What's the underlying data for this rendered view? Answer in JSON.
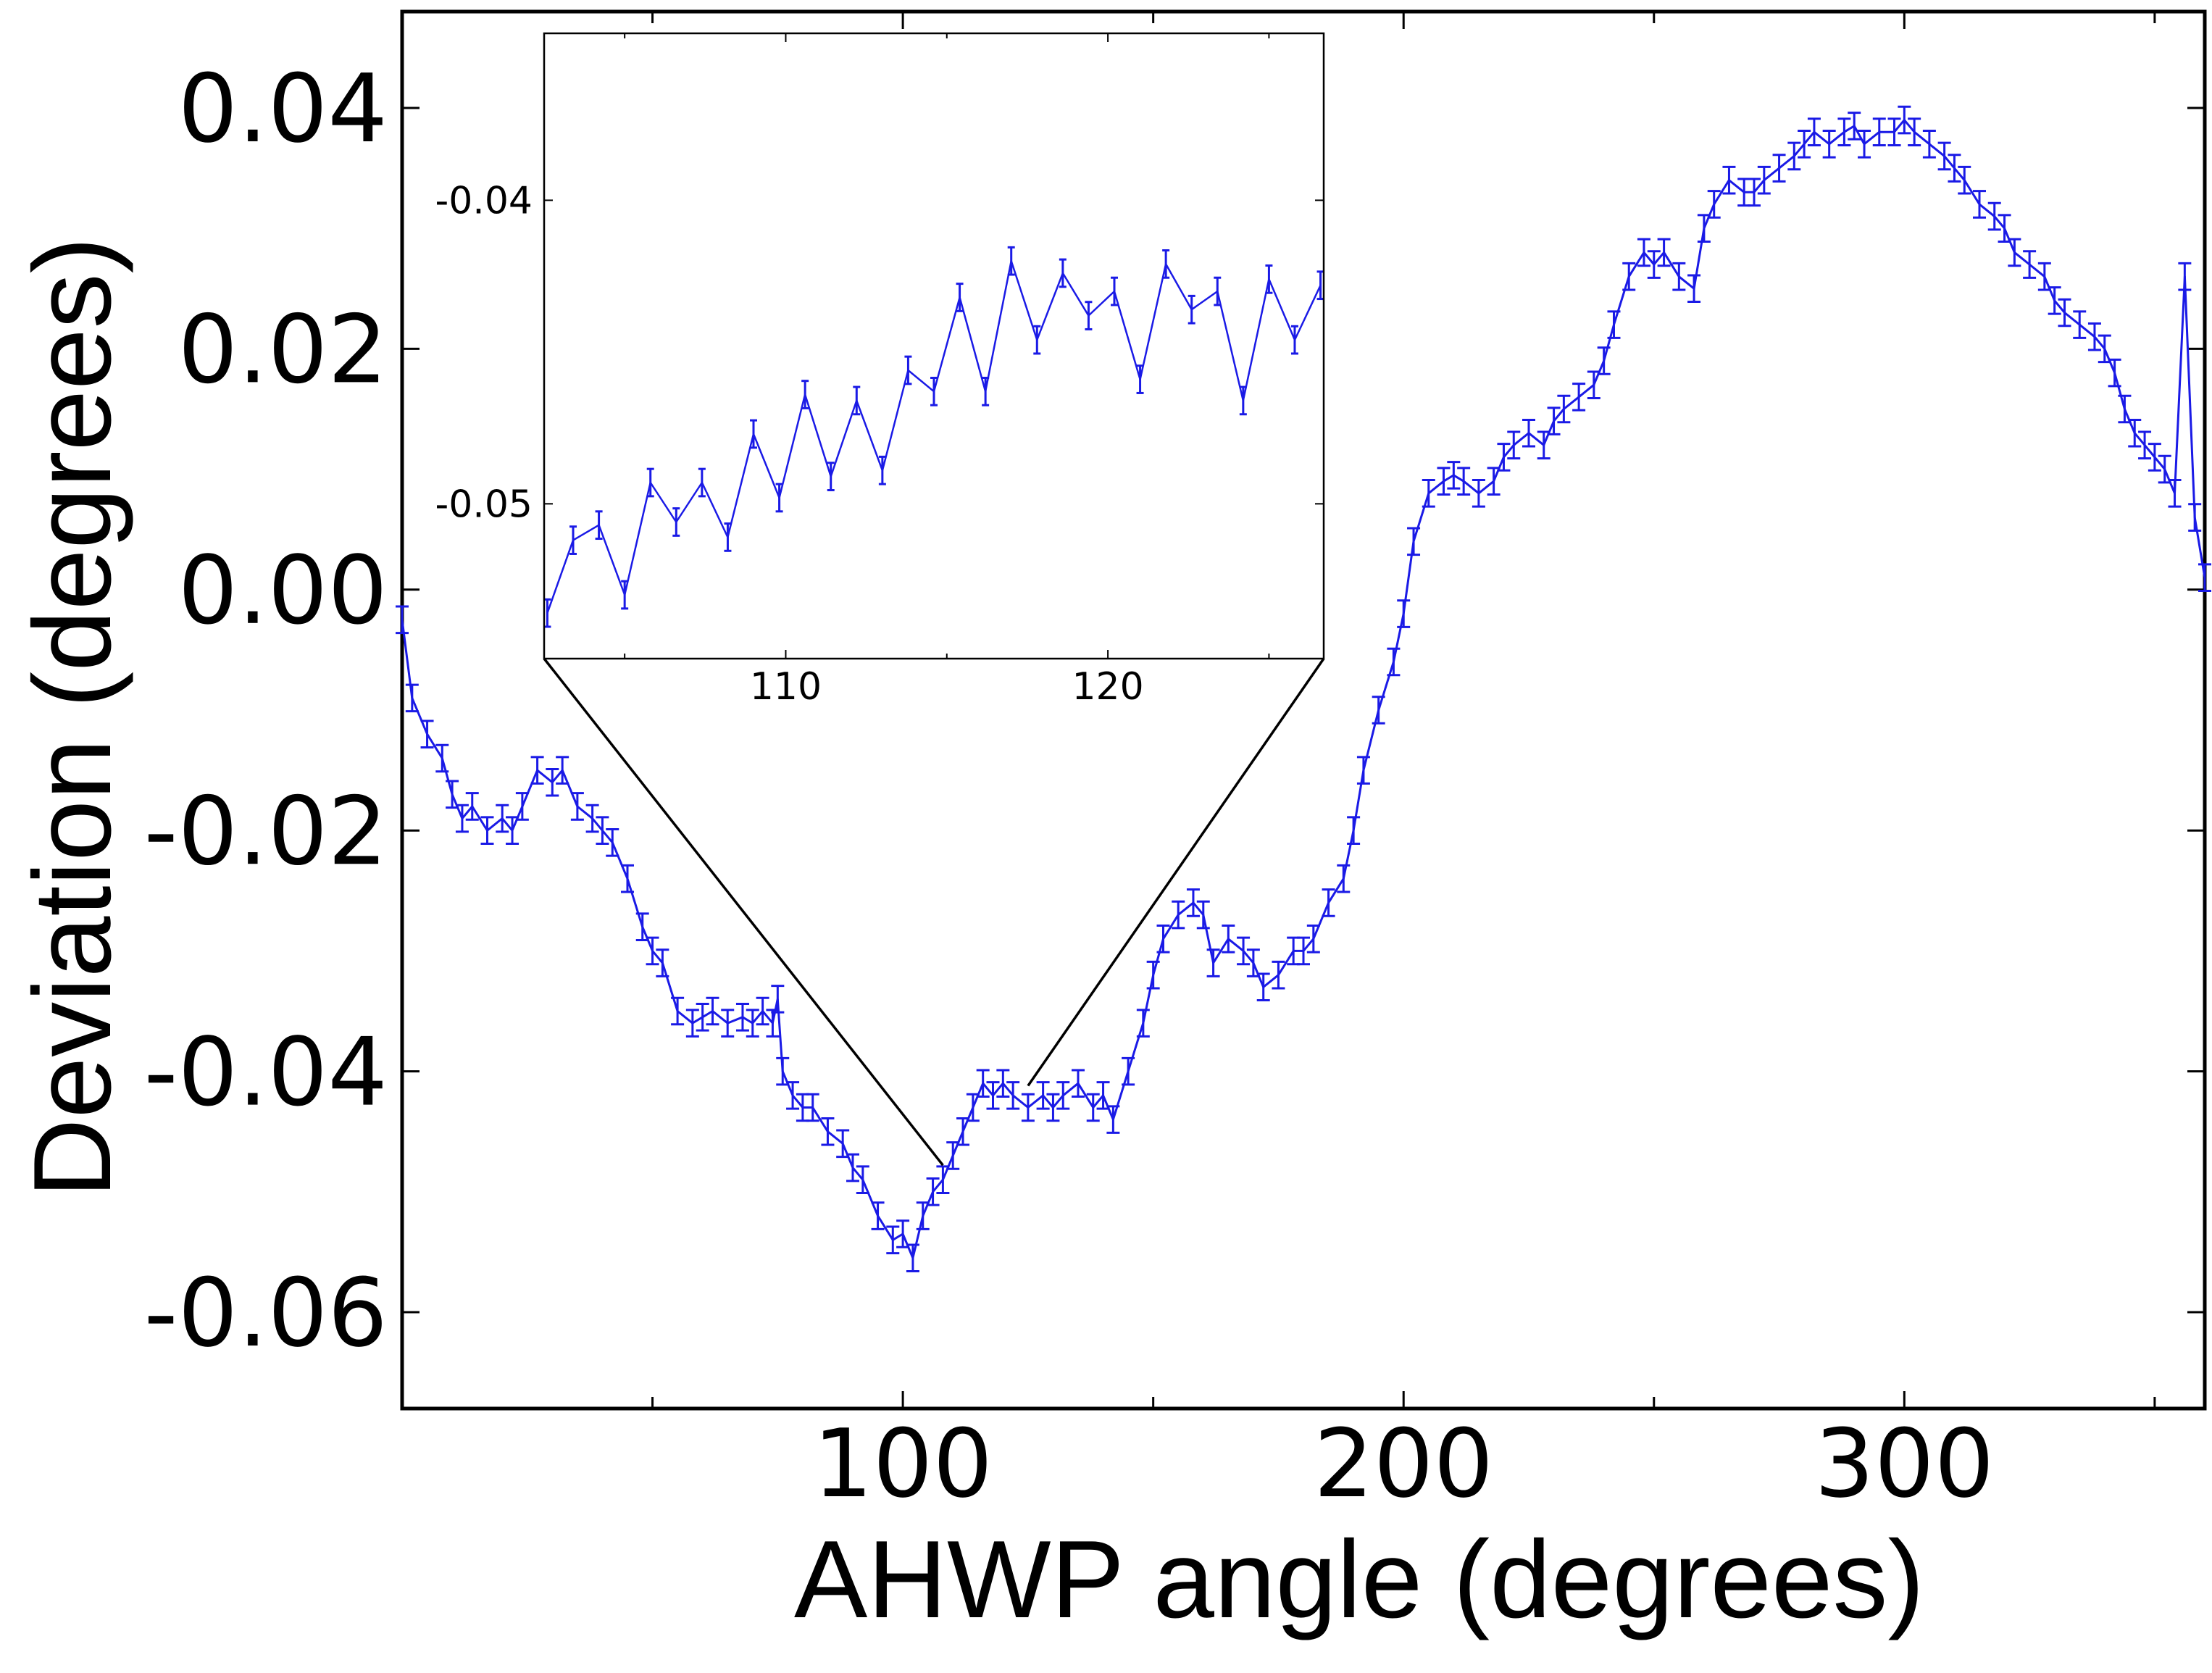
{
  "colors": {
    "series": "#1a1ae6",
    "axis": "#000000",
    "background": "#ffffff"
  },
  "chart_data": [
    {
      "type": "line",
      "error_bars": true,
      "xlabel": "AHWP angle (degrees)",
      "ylabel": "Deviation (degrees)",
      "xlim": [
        0,
        360
      ],
      "ylim": [
        -0.068,
        0.048
      ],
      "xticks": [
        100,
        200,
        300
      ],
      "xtick_labels": [
        "100",
        "200",
        "300"
      ],
      "yticks": [
        0.04,
        0.02,
        0.0,
        -0.02,
        -0.04,
        -0.06
      ],
      "ytick_labels": [
        "0.04",
        "0.02",
        "0.00",
        "-0.02",
        "-0.04",
        "-0.06"
      ],
      "grid": false,
      "legend": "none",
      "error_bar_size": 0.0011,
      "series": [
        {
          "x": [
            0,
            2,
            5,
            8,
            10,
            12,
            14,
            17,
            20,
            22,
            24,
            27,
            30,
            32,
            35,
            38,
            40,
            42,
            45,
            48,
            50,
            52,
            55,
            58,
            60,
            62,
            65,
            68,
            70,
            72,
            74,
            75,
            76,
            78,
            80,
            82,
            85,
            88,
            90,
            92,
            95,
            98,
            100,
            102,
            104,
            106,
            108,
            110,
            112,
            114,
            116,
            118,
            120,
            122,
            125,
            128,
            130,
            132,
            135,
            138,
            140,
            142,
            145,
            148,
            150,
            152,
            155,
            158,
            160,
            162,
            165,
            168,
            170,
            172,
            175,
            178,
            180,
            182,
            185,
            188,
            190,
            192,
            195,
            198,
            200,
            202,
            205,
            208,
            210,
            212,
            215,
            218,
            220,
            222,
            225,
            228,
            230,
            232,
            235,
            238,
            240,
            242,
            245,
            248,
            250,
            252,
            255,
            258,
            260,
            262,
            265,
            268,
            270,
            272,
            275,
            278,
            280,
            282,
            285,
            288,
            290,
            292,
            295,
            298,
            300,
            302,
            305,
            308,
            310,
            312,
            315,
            318,
            320,
            322,
            325,
            328,
            330,
            332,
            335,
            338,
            340,
            342,
            344,
            346,
            348,
            350,
            352,
            354,
            356,
            358,
            360
          ],
          "y": [
            -0.0025,
            -0.009,
            -0.012,
            -0.014,
            -0.017,
            -0.019,
            -0.018,
            -0.02,
            -0.019,
            -0.02,
            -0.018,
            -0.015,
            -0.016,
            -0.015,
            -0.018,
            -0.019,
            -0.02,
            -0.021,
            -0.024,
            -0.028,
            -0.03,
            -0.031,
            -0.035,
            -0.036,
            -0.0355,
            -0.035,
            -0.036,
            -0.0355,
            -0.036,
            -0.035,
            -0.036,
            -0.034,
            -0.04,
            -0.042,
            -0.043,
            -0.043,
            -0.045,
            -0.046,
            -0.048,
            -0.049,
            -0.052,
            -0.054,
            -0.0535,
            -0.0555,
            -0.052,
            -0.05,
            -0.049,
            -0.047,
            -0.045,
            -0.043,
            -0.041,
            -0.042,
            -0.041,
            -0.042,
            -0.043,
            -0.042,
            -0.043,
            -0.042,
            -0.041,
            -0.043,
            -0.042,
            -0.044,
            -0.04,
            -0.036,
            -0.032,
            -0.029,
            -0.027,
            -0.026,
            -0.027,
            -0.031,
            -0.029,
            -0.03,
            -0.031,
            -0.033,
            -0.032,
            -0.03,
            -0.03,
            -0.029,
            -0.026,
            -0.024,
            -0.02,
            -0.015,
            -0.01,
            -0.006,
            -0.002,
            0.004,
            0.008,
            0.009,
            0.0095,
            0.009,
            0.008,
            0.009,
            0.011,
            0.012,
            0.013,
            0.012,
            0.014,
            0.015,
            0.016,
            0.017,
            0.019,
            0.022,
            0.026,
            0.028,
            0.027,
            0.028,
            0.026,
            0.025,
            0.03,
            0.032,
            0.034,
            0.033,
            0.033,
            0.034,
            0.035,
            0.036,
            0.037,
            0.038,
            0.037,
            0.038,
            0.0385,
            0.037,
            0.038,
            0.038,
            0.039,
            0.038,
            0.037,
            0.036,
            0.035,
            0.034,
            0.032,
            0.031,
            0.03,
            0.028,
            0.027,
            0.026,
            0.024,
            0.023,
            0.022,
            0.021,
            0.02,
            0.018,
            0.015,
            0.013,
            0.012,
            0.011,
            0.01,
            0.008,
            0.026,
            0.006,
            0.001
          ]
        }
      ]
    },
    {
      "type": "line",
      "error_bars": true,
      "role": "inset",
      "xlim": [
        102.5,
        126.7
      ],
      "ylim": [
        -0.0551,
        -0.0345
      ],
      "xticks": [
        110,
        120
      ],
      "xtick_labels": [
        "110",
        "120"
      ],
      "yticks": [
        -0.04,
        -0.05
      ],
      "ytick_labels": [
        "-0.04",
        "-0.05"
      ],
      "grid": false,
      "legend": "none",
      "zoom_from_x": [
        108.0,
        125.0
      ],
      "error_bar_size": 0.00045,
      "series": [
        {
          "x": [
            102.6,
            103.4,
            104.2,
            105.0,
            105.8,
            106.6,
            107.4,
            108.2,
            109.0,
            109.8,
            110.6,
            111.4,
            112.2,
            113.0,
            113.8,
            114.6,
            115.4,
            116.2,
            117.0,
            117.8,
            118.6,
            119.4,
            120.2,
            121.0,
            121.8,
            122.6,
            123.4,
            124.2,
            125.0,
            125.8,
            126.6
          ],
          "y": [
            -0.0536,
            -0.0512,
            -0.0507,
            -0.053,
            -0.0493,
            -0.0506,
            -0.0493,
            -0.0511,
            -0.0477,
            -0.0498,
            -0.0464,
            -0.0491,
            -0.0466,
            -0.0489,
            -0.0456,
            -0.0463,
            -0.0432,
            -0.0463,
            -0.042,
            -0.0446,
            -0.0424,
            -0.0438,
            -0.043,
            -0.0459,
            -0.0421,
            -0.0436,
            -0.043,
            -0.0466,
            -0.0426,
            -0.0446,
            -0.0428
          ]
        }
      ]
    }
  ]
}
